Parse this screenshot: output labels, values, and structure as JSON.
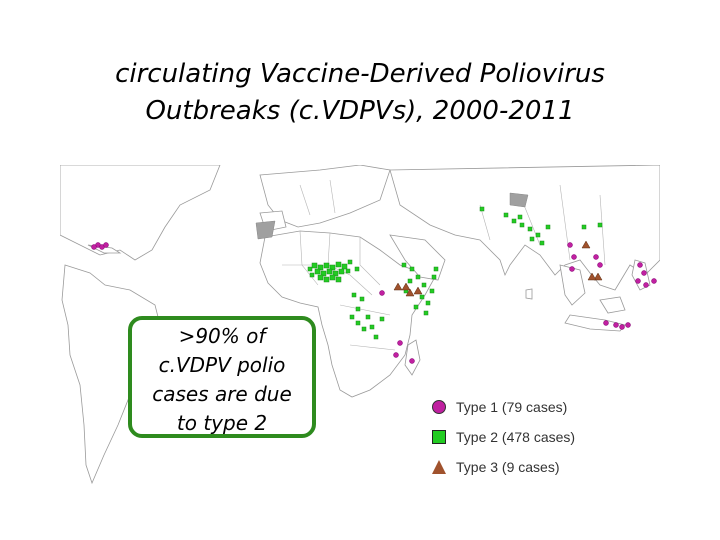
{
  "title": {
    "line1": "circulating Vaccine-Derived Poliovirus",
    "line2": "Outbreaks (c.VDPVs), 2000-2011"
  },
  "callout": {
    "line1": ">90% of",
    "line2": "c.VDPV polio",
    "line3": "cases are due",
    "line4": "to type 2"
  },
  "legend": {
    "items": [
      {
        "label": "Type 1 (79 cases)",
        "color": "#c020a0",
        "shape": "circle"
      },
      {
        "label": "Type 2 (478 cases)",
        "color": "#22cc22",
        "shape": "square"
      },
      {
        "label": "Type 3 (9 cases)",
        "color": "#a0522d",
        "shape": "triangle"
      }
    ]
  },
  "map": {
    "land_color": "#ffffff",
    "border_color": "#b0b0b0",
    "shaded_country_color": "#a0a0a0",
    "outbreak_regions": [
      {
        "name": "Hispaniola",
        "type": "type-1"
      },
      {
        "name": "Nigeria",
        "type": "type-2"
      },
      {
        "name": "Niger",
        "type": "type-2"
      },
      {
        "name": "Chad",
        "type": "type-2"
      },
      {
        "name": "DR Congo",
        "type": "type-2"
      },
      {
        "name": "Ethiopia",
        "type": "type-2"
      },
      {
        "name": "Somalia",
        "type": "type-2"
      },
      {
        "name": "Kenya",
        "type": "type-2"
      },
      {
        "name": "Madagascar",
        "type": "type-1"
      },
      {
        "name": "Yemen",
        "type": "type-2"
      },
      {
        "name": "Afghanistan",
        "type": "type-2"
      },
      {
        "name": "India",
        "type": "type-2"
      },
      {
        "name": "Myanmar",
        "type": "type-1"
      },
      {
        "name": "Cambodia",
        "type": "type-3"
      },
      {
        "name": "Philippines",
        "type": "type-1"
      },
      {
        "name": "Indonesia",
        "type": "type-1"
      },
      {
        "name": "China",
        "type": "type-3"
      }
    ]
  }
}
